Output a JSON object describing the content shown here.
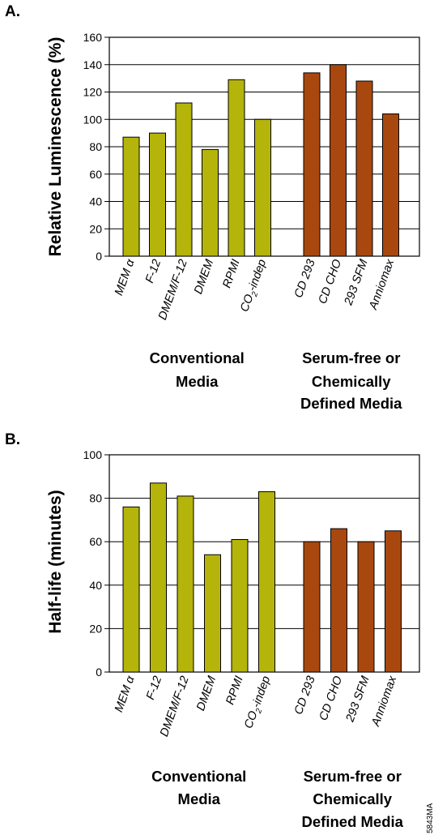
{
  "figure_id": "5843MA",
  "colors": {
    "conventional": "#b5b40b",
    "serum_free": "#a8480f",
    "axis": "#000000"
  },
  "chart_data": [
    {
      "panel": "A.",
      "type": "bar",
      "ylabel": "Relative Luminescence (%)",
      "ylim": [
        0,
        160
      ],
      "yticks": [
        0,
        20,
        40,
        60,
        80,
        100,
        120,
        140,
        160
      ],
      "grid": true,
      "groups": [
        {
          "label_lines": [
            "Conventional",
            "Media"
          ],
          "color_key": "conventional",
          "categories": [
            {
              "label": "MEM α",
              "sub": ""
            },
            {
              "label": "F-12",
              "sub": ""
            },
            {
              "label": "DMEM/F-12",
              "sub": ""
            },
            {
              "label": "DMEM",
              "sub": ""
            },
            {
              "label": "RPMI",
              "sub": ""
            },
            {
              "label": "CO",
              "sub": "2",
              "post": "-indep"
            }
          ],
          "values": [
            87,
            90,
            112,
            78,
            129,
            100
          ]
        },
        {
          "label_lines": [
            "Serum-free or",
            "Chemically",
            "Defined Media"
          ],
          "color_key": "serum_free",
          "categories": [
            {
              "label": "CD 293",
              "sub": ""
            },
            {
              "label": "CD CHO",
              "sub": ""
            },
            {
              "label": "293 SFM",
              "sub": ""
            },
            {
              "label": "Anniomax",
              "sub": ""
            }
          ],
          "values": [
            134,
            140,
            128,
            104
          ]
        }
      ]
    },
    {
      "panel": "B.",
      "type": "bar",
      "ylabel": "Half-life (minutes)",
      "ylim": [
        0,
        100
      ],
      "yticks": [
        0,
        20,
        40,
        60,
        80,
        100
      ],
      "grid": true,
      "groups": [
        {
          "label_lines": [
            "Conventional",
            "Media"
          ],
          "color_key": "conventional",
          "categories": [
            {
              "label": "MEM α",
              "sub": ""
            },
            {
              "label": "F-12",
              "sub": ""
            },
            {
              "label": "DMEM/F-12",
              "sub": ""
            },
            {
              "label": "DMEM",
              "sub": ""
            },
            {
              "label": "RPMI",
              "sub": ""
            },
            {
              "label": "CO",
              "sub": "2",
              "post": "-indep"
            }
          ],
          "values": [
            76,
            87,
            81,
            54,
            61,
            83
          ]
        },
        {
          "label_lines": [
            "Serum-free or",
            "Chemically",
            "Defined Media"
          ],
          "color_key": "serum_free",
          "categories": [
            {
              "label": "CD 293",
              "sub": ""
            },
            {
              "label": "CD CHO",
              "sub": ""
            },
            {
              "label": "293 SFM",
              "sub": ""
            },
            {
              "label": "Anniomax",
              "sub": ""
            }
          ],
          "values": [
            60,
            66,
            60,
            65
          ]
        }
      ]
    }
  ]
}
